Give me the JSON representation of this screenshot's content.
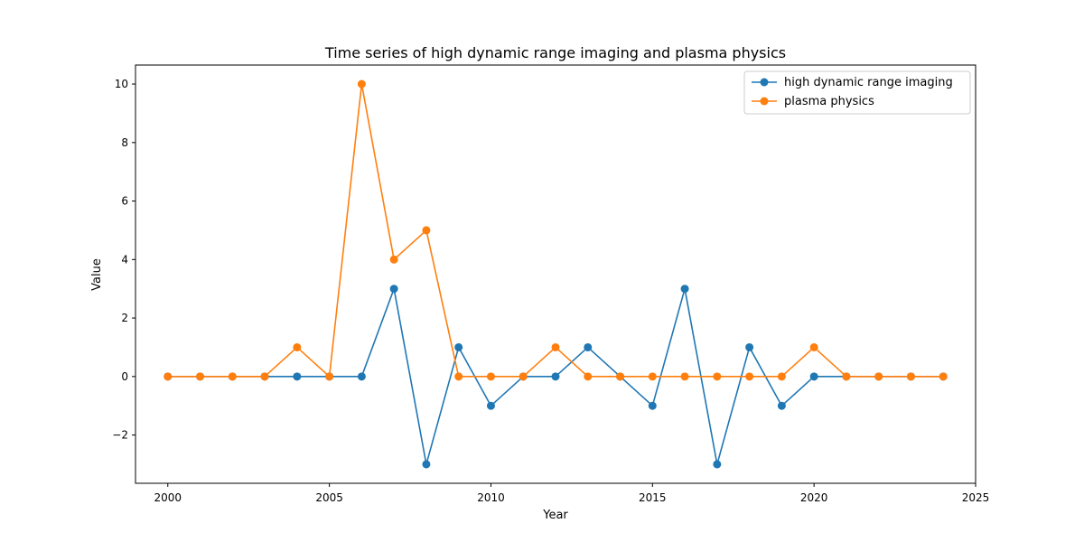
{
  "chart_data": {
    "type": "line",
    "title": "Time series of high dynamic range imaging and plasma physics",
    "xlabel": "Year",
    "ylabel": "Value",
    "xlim": [
      1999,
      2025
    ],
    "ylim": [
      -3.65,
      10.65
    ],
    "xticks": [
      2000,
      2005,
      2010,
      2015,
      2020,
      2025
    ],
    "yticks": [
      -2,
      0,
      2,
      4,
      6,
      8,
      10
    ],
    "grid": false,
    "legend_position": "top-right",
    "x": [
      2000,
      2001,
      2002,
      2003,
      2004,
      2005,
      2006,
      2007,
      2008,
      2009,
      2010,
      2011,
      2012,
      2013,
      2014,
      2015,
      2016,
      2017,
      2018,
      2019,
      2020,
      2021,
      2022,
      2023,
      2024
    ],
    "series": [
      {
        "name": "high dynamic range imaging",
        "color": "#1f77b4",
        "marker": "circle",
        "values": [
          0,
          0,
          0,
          0,
          0,
          0,
          0,
          3,
          -3,
          1,
          -1,
          0,
          0,
          1,
          0,
          -1,
          3,
          -3,
          1,
          -1,
          0,
          0,
          0,
          0,
          0
        ]
      },
      {
        "name": "plasma physics",
        "color": "#ff7f0e",
        "marker": "circle",
        "values": [
          0,
          0,
          0,
          0,
          1,
          0,
          10,
          4,
          5,
          0,
          0,
          0,
          1,
          0,
          0,
          0,
          0,
          0,
          0,
          0,
          1,
          0,
          0,
          0,
          0
        ]
      }
    ]
  }
}
